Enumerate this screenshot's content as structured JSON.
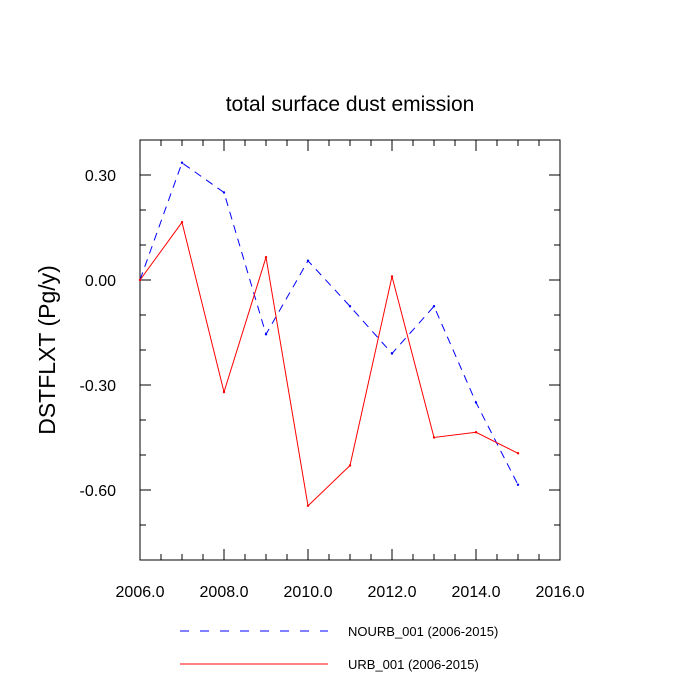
{
  "chart_data": {
    "type": "line",
    "title": "total surface dust emission",
    "xlabel": "",
    "ylabel": "DSTFLXT  (Pg/y)",
    "xlim": [
      2006.0,
      2016.0
    ],
    "ylim": [
      -0.8,
      0.4
    ],
    "x_major_ticks": [
      2006.0,
      2008.0,
      2010.0,
      2012.0,
      2014.0,
      2016.0
    ],
    "x_tick_labels": [
      "2006.0",
      "2008.0",
      "2010.0",
      "2012.0",
      "2014.0",
      "2016.0"
    ],
    "x_minor_ticks": [
      2006.5,
      2007.0,
      2007.5,
      2008.5,
      2009.0,
      2009.5,
      2010.5,
      2011.0,
      2011.5,
      2012.5,
      2013.0,
      2013.5,
      2014.5,
      2015.0,
      2015.5
    ],
    "y_major_ticks": [
      0.3,
      0.0,
      -0.3,
      -0.6
    ],
    "y_tick_labels": [
      "0.30",
      "0.00",
      "-0.30",
      "-0.60"
    ],
    "y_minor_ticks": [
      0.4,
      0.2,
      0.1,
      -0.1,
      -0.2,
      -0.4,
      -0.5,
      -0.7,
      -0.8
    ],
    "x": [
      2006,
      2007,
      2008,
      2009,
      2010,
      2011,
      2012,
      2013,
      2014,
      2015
    ],
    "series": [
      {
        "name": "NOURB_001 (2006-2015)",
        "color": "#0000ff",
        "style": "dashed",
        "values": [
          0.0,
          0.335,
          0.25,
          -0.155,
          0.055,
          -0.075,
          -0.21,
          -0.075,
          -0.35,
          -0.585
        ]
      },
      {
        "name": "URB_001 (2006-2015)",
        "color": "#ff0000",
        "style": "solid",
        "values": [
          0.0,
          0.165,
          -0.32,
          0.065,
          -0.645,
          -0.53,
          0.01,
          -0.45,
          -0.435,
          -0.495
        ]
      }
    ],
    "grid": false,
    "legend_position": "bottom"
  }
}
